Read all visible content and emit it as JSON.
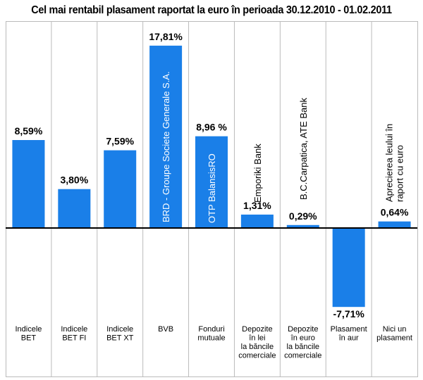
{
  "chart_data": {
    "type": "bar",
    "title": "Cel mai rentabil plasament raportat la euro în perioada 30.12.2010 - 01.02.2011",
    "categories": [
      [
        "Indicele",
        "BET"
      ],
      [
        "Indicele",
        "BET FI"
      ],
      [
        "Indicele",
        "BET XT"
      ],
      [
        "BVB"
      ],
      [
        "Fonduri",
        "mutuale"
      ],
      [
        "Depozite",
        "în lei",
        "la băncile",
        "comerciale"
      ],
      [
        "Depozite",
        "în euro",
        "la băncile",
        "comerciale"
      ],
      [
        "Plasament",
        "în aur"
      ],
      [
        "Nici un",
        "plasament"
      ]
    ],
    "values": [
      8.59,
      3.8,
      7.59,
      17.81,
      8.96,
      1.31,
      0.29,
      -7.71,
      0.64
    ],
    "value_labels": [
      "8,59%",
      "3,80%",
      "7,59%",
      "17,81%",
      "8,96 %",
      "1,31%",
      "0,29%",
      "-7,71%",
      "0,64%"
    ],
    "annotations": [
      "",
      "",
      "",
      "BRD - Groupe Societe Generale S.A.",
      "OTP BalansisRO",
      "Emporiki Bank",
      "B.C.Carpatica, ATE Bank",
      "",
      "Aprecierea leului în raport cu euro"
    ],
    "ylim": [
      -8,
      18
    ],
    "grid": false,
    "colors": {
      "bar": "#1a7fe8",
      "background": "#ffffff",
      "separator": "#bbbbbb",
      "axis": "#000000"
    }
  }
}
